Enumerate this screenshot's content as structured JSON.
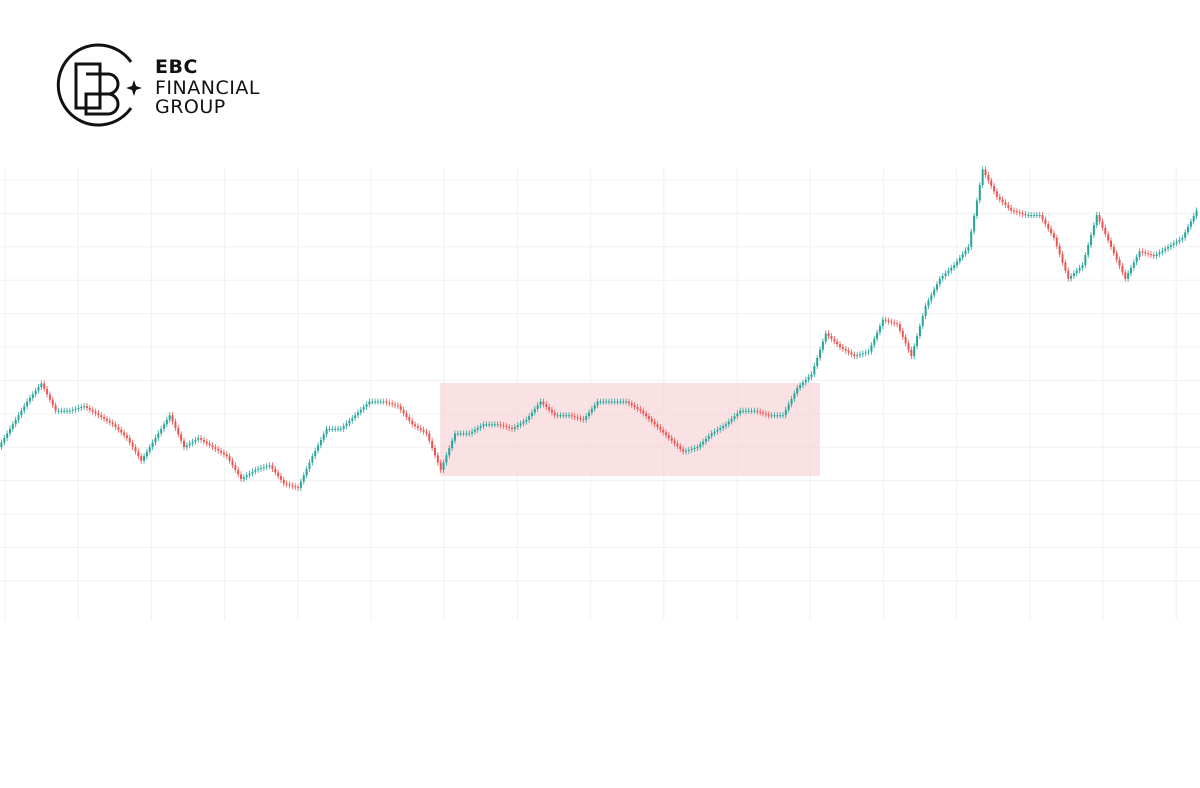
{
  "logo": {
    "line1": "EBC",
    "line2": "FINANCIAL",
    "line3": "GROUP"
  },
  "chart_data": {
    "type": "candlestick",
    "up_color": "#26a69a",
    "down_color": "#ef5350",
    "ylim": [
      0,
      100
    ],
    "values": [
      38,
      43,
      48,
      52,
      46,
      46,
      47,
      45,
      43,
      40,
      35,
      40,
      45,
      38,
      40,
      38,
      36,
      31,
      33,
      34,
      30,
      29,
      36,
      42,
      42,
      45,
      48,
      48,
      47,
      43,
      41,
      33,
      41,
      41,
      43,
      43,
      42,
      44,
      48,
      45,
      45,
      44,
      48,
      48,
      48,
      46,
      43,
      40,
      37,
      38,
      41,
      43,
      46,
      46,
      45,
      45,
      51,
      54,
      63,
      60,
      58,
      59,
      66,
      65,
      58,
      69,
      75,
      78,
      82,
      99,
      93,
      90,
      89,
      89,
      84,
      75,
      78,
      89,
      82,
      75,
      81,
      80,
      82,
      84,
      90
    ]
  }
}
